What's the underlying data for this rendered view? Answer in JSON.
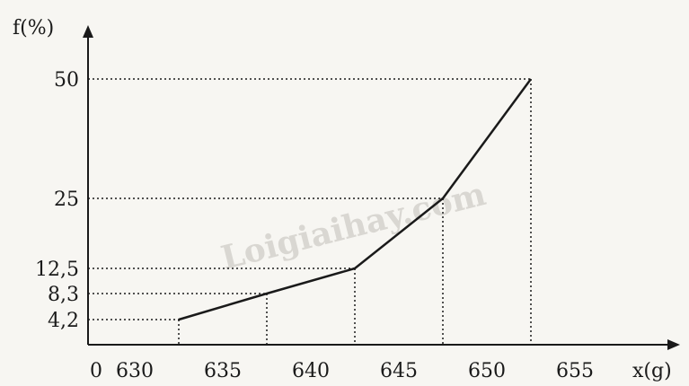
{
  "watermark": "Loigiaihay.com",
  "chart_data": {
    "type": "line",
    "xlabel": "x(g)",
    "ylabel": "f(%)",
    "origin_label": "0",
    "x_ticks": [
      "630",
      "635",
      "640",
      "645",
      "650",
      "655"
    ],
    "y_ticks": [
      {
        "value": 4.2,
        "label": "4,2"
      },
      {
        "value": 8.3,
        "label": "8,3"
      },
      {
        "value": 12.5,
        "label": "12,5"
      },
      {
        "value": 25,
        "label": "25"
      },
      {
        "value": 50,
        "label": "50"
      }
    ],
    "series": [
      {
        "points": [
          {
            "x": 632.5,
            "y": 4.2
          },
          {
            "x": 637.5,
            "y": 8.3
          },
          {
            "x": 642.5,
            "y": 12.5
          },
          {
            "x": 647.5,
            "y": 25
          },
          {
            "x": 652.5,
            "y": 50
          }
        ]
      }
    ],
    "grid": "dotted guides to axes",
    "colors": {
      "line": "#1a1a1a",
      "guides": "#1a1a1a"
    }
  }
}
